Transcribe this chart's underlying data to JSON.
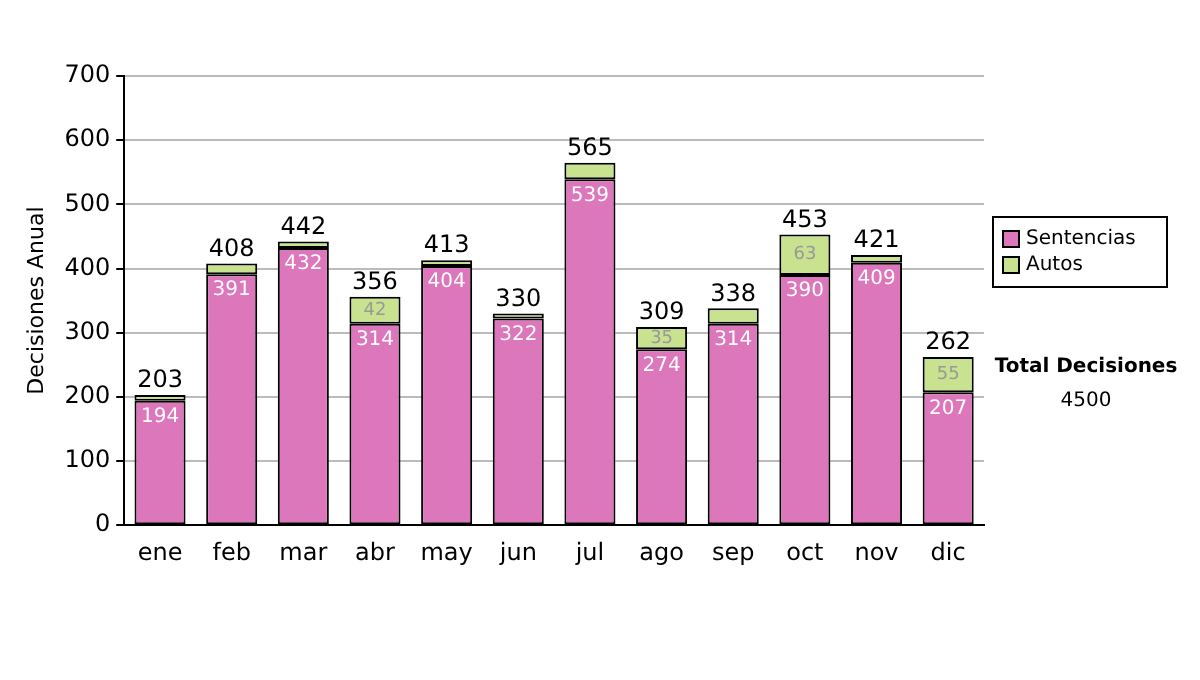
{
  "chart_data": {
    "type": "bar",
    "stacked": true,
    "ylabel": "Decisiones Anual",
    "categories": [
      "ene",
      "feb",
      "mar",
      "abr",
      "may",
      "jun",
      "jul",
      "ago",
      "sep",
      "oct",
      "nov",
      "dic"
    ],
    "series": [
      {
        "name": "Sentencias",
        "color": "#dd77bb",
        "values": [
          194,
          391,
          432,
          314,
          404,
          322,
          539,
          274,
          314,
          390,
          409,
          207
        ],
        "value_labels": [
          "194",
          "391",
          "432",
          "314",
          "404",
          "322",
          "539",
          "274",
          "314",
          "390",
          "409",
          "207"
        ]
      },
      {
        "name": "Autos",
        "color": "#c8e290",
        "values": [
          9,
          17,
          10,
          42,
          9,
          8,
          26,
          35,
          24,
          63,
          12,
          55
        ],
        "value_labels": [
          null,
          null,
          null,
          "42",
          null,
          null,
          null,
          "35",
          null,
          "63",
          null,
          "55"
        ]
      }
    ],
    "totals": [
      "203",
      "408",
      "442",
      "356",
      "413",
      "330",
      "565",
      "309",
      "338",
      "453",
      "421",
      "262"
    ],
    "ylim": [
      0,
      700
    ],
    "yticks": [
      0,
      100,
      200,
      300,
      400,
      500,
      600,
      700
    ],
    "grid": "y",
    "legend": "right",
    "annotations": [
      "Total Decisiones",
      "4500"
    ]
  }
}
